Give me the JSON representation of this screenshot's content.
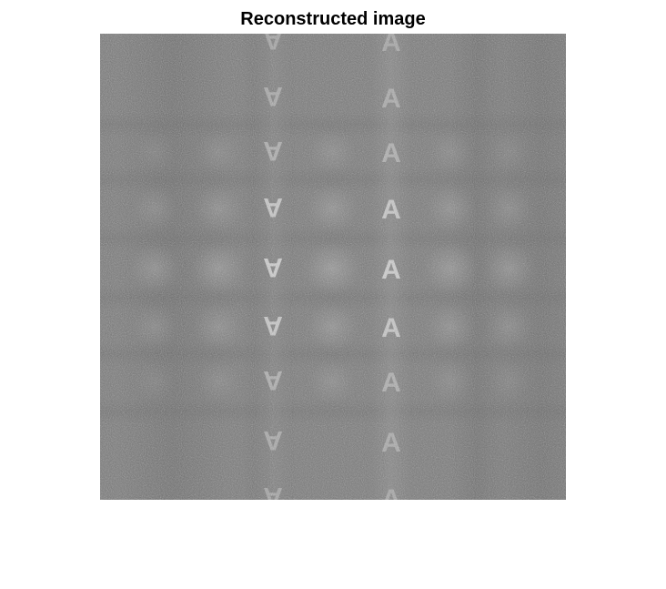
{
  "figure": {
    "title": "Reconstructed image"
  },
  "image": {
    "description": "",
    "base_gray": "#7a7a7a",
    "noise": true,
    "letter_glyph": "A",
    "colors": {
      "background": "#ffffff",
      "letter_bright": "#bdbdbd",
      "blob": "#9a9a9a",
      "dark_band": "#606060"
    }
  }
}
